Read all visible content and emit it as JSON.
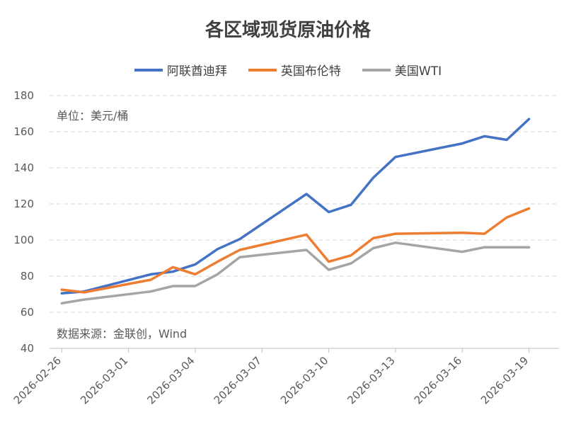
{
  "chart_data": {
    "type": "line",
    "title": "各区域现货原油价格",
    "unit_note": "单位：美元/桶",
    "source_note": "数据来源：金联创，Wind",
    "ylim": [
      40,
      180
    ],
    "yticks": [
      40,
      60,
      80,
      100,
      120,
      140,
      160,
      180
    ],
    "x_ticks": [
      "2026-02-26",
      "2026-03-01",
      "2026-03-04",
      "2026-03-07",
      "2026-03-10",
      "2026-03-13",
      "2026-03-16",
      "2026-03-19"
    ],
    "grid": true,
    "legend_position": "top",
    "x": [
      "2026-02-26",
      "2026-02-27",
      "2026-03-02",
      "2026-03-03",
      "2026-03-04",
      "2026-03-05",
      "2026-03-06",
      "2026-03-09",
      "2026-03-10",
      "2026-03-11",
      "2026-03-12",
      "2026-03-13",
      "2026-03-16",
      "2026-03-17",
      "2026-03-18",
      "2026-03-19"
    ],
    "series": [
      {
        "name": "阿联酋迪拜",
        "color": "#4472C4",
        "values": [
          70.5,
          71.5,
          81.0,
          82.5,
          86.5,
          95.0,
          100.5,
          125.5,
          115.5,
          119.5,
          134.5,
          146.0,
          153.5,
          157.5,
          155.5,
          167.0
        ]
      },
      {
        "name": "英国布伦特",
        "color": "#ED7D31",
        "values": [
          72.5,
          71.0,
          78.0,
          85.0,
          81.0,
          88.0,
          94.5,
          103.0,
          88.0,
          91.5,
          101.0,
          103.5,
          104.0,
          103.5,
          112.5,
          117.5
        ]
      },
      {
        "name": "美国WTI",
        "color": "#A5A5A5",
        "values": [
          65.0,
          67.0,
          71.5,
          74.5,
          74.5,
          81.0,
          90.5,
          94.5,
          83.5,
          87.0,
          95.5,
          98.5,
          93.5,
          96.0,
          96.0,
          96.0
        ]
      }
    ]
  }
}
